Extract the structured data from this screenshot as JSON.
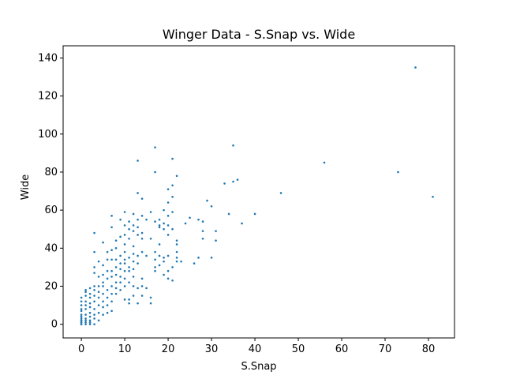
{
  "chart_data": {
    "type": "scatter",
    "title": "Winger Data - S.Snap vs. Wide",
    "xlabel": "S.Snap",
    "ylabel": "Wide",
    "color": "#1f77b4",
    "x": [
      0,
      0,
      0,
      0,
      0,
      0,
      0,
      0,
      0,
      0,
      0,
      0,
      0,
      0,
      1,
      1,
      1,
      1,
      1,
      1,
      1,
      1,
      1,
      1,
      1,
      2,
      2,
      2,
      2,
      2,
      2,
      2,
      2,
      2,
      2,
      3,
      3,
      3,
      3,
      3,
      3,
      3,
      3,
      3,
      3,
      3,
      3,
      4,
      4,
      4,
      4,
      4,
      4,
      4,
      4,
      5,
      5,
      5,
      5,
      5,
      5,
      5,
      5,
      5,
      6,
      6,
      6,
      6,
      6,
      6,
      6,
      6,
      7,
      7,
      7,
      7,
      7,
      7,
      7,
      7,
      7,
      7,
      8,
      8,
      8,
      8,
      8,
      8,
      8,
      8,
      9,
      9,
      9,
      9,
      9,
      9,
      9,
      9,
      10,
      10,
      10,
      10,
      10,
      10,
      10,
      10,
      10,
      10,
      10,
      11,
      11,
      11,
      11,
      11,
      11,
      11,
      11,
      11,
      12,
      12,
      12,
      12,
      12,
      12,
      12,
      12,
      12,
      12,
      13,
      13,
      13,
      13,
      13,
      13,
      13,
      14,
      14,
      14,
      14,
      14,
      14,
      14,
      15,
      15,
      15,
      16,
      16,
      16,
      16,
      17,
      17,
      17,
      17,
      17,
      18,
      18,
      18,
      18,
      18,
      18,
      19,
      19,
      19,
      19,
      19,
      19,
      20,
      20,
      20,
      20,
      20,
      20,
      21,
      21,
      21,
      21,
      21,
      22,
      22,
      22,
      22,
      22,
      23,
      77,
      81,
      73,
      56,
      46,
      40,
      37,
      36,
      35,
      35,
      34,
      33,
      31,
      31,
      30,
      30,
      29,
      28,
      28,
      28,
      27,
      27,
      26,
      25,
      24,
      22,
      21,
      21,
      20,
      20,
      17,
      17,
      13,
      13,
      14
    ],
    "values": [
      0,
      1,
      2,
      3,
      4,
      5,
      7,
      8,
      10,
      12,
      14,
      1,
      0,
      2,
      0,
      1,
      2,
      5,
      8,
      10,
      12,
      15,
      17,
      18,
      3,
      0,
      2,
      4,
      6,
      9,
      11,
      14,
      16,
      19,
      1,
      0,
      3,
      5,
      8,
      12,
      15,
      18,
      20,
      27,
      30,
      38,
      48,
      2,
      6,
      10,
      14,
      17,
      20,
      25,
      33,
      5,
      9,
      12,
      16,
      20,
      22,
      26,
      31,
      43,
      6,
      10,
      14,
      18,
      24,
      28,
      34,
      38,
      7,
      12,
      16,
      20,
      25,
      28,
      34,
      39,
      51,
      57,
      16,
      19,
      22,
      26,
      30,
      34,
      40,
      44,
      18,
      22,
      25,
      29,
      32,
      36,
      46,
      55,
      13,
      20,
      24,
      28,
      32,
      34,
      38,
      42,
      47,
      52,
      59,
      11,
      13,
      22,
      28,
      30,
      35,
      45,
      50,
      54,
      15,
      20,
      25,
      29,
      33,
      37,
      41,
      49,
      52,
      58,
      11,
      19,
      32,
      36,
      47,
      51,
      55,
      15,
      20,
      24,
      38,
      45,
      48,
      57,
      19,
      36,
      55,
      11,
      14,
      45,
      59,
      28,
      30,
      34,
      38,
      54,
      31,
      36,
      42,
      51,
      52,
      55,
      26,
      33,
      35,
      50,
      53,
      60,
      24,
      28,
      36,
      47,
      52,
      57,
      23,
      30,
      50,
      59,
      67,
      33,
      35,
      38,
      42,
      44,
      33,
      135,
      67,
      80,
      85,
      69,
      58,
      53,
      76,
      75,
      94,
      58,
      74,
      44,
      49,
      62,
      35,
      65,
      45,
      49,
      54,
      55,
      35,
      32,
      56,
      53,
      78,
      87,
      73,
      71,
      64,
      93,
      80,
      86,
      69,
      66
    ],
    "xlim": [
      -4.2,
      86
    ],
    "ylim": [
      -7.2,
      146.4
    ],
    "xticks": [
      0,
      10,
      20,
      30,
      40,
      50,
      60,
      70,
      80
    ],
    "yticks": [
      0,
      20,
      40,
      60,
      80,
      100,
      120,
      140
    ]
  }
}
